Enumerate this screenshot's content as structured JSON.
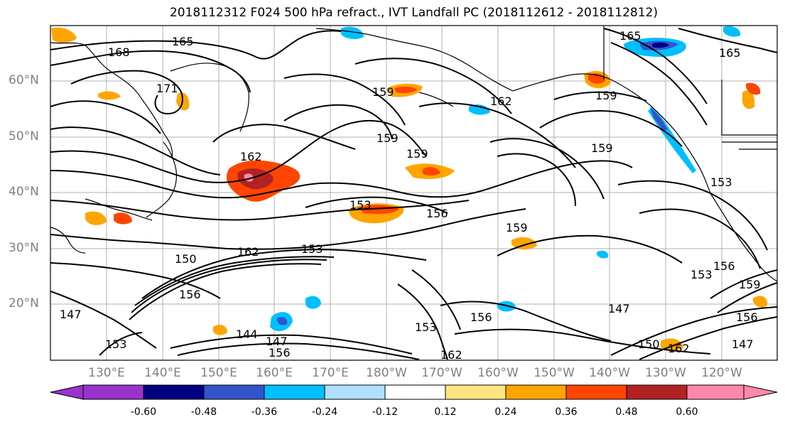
{
  "title": "2018112312 F024 500 hPa refract., IVT Landfall PC (2018112612 - 2018112812)",
  "lat_labels": [
    "60°N",
    "50°N",
    "40°N",
    "30°N",
    "20°N"
  ],
  "lon_labels": [
    "130°E",
    "140°E",
    "150°E",
    "160°E",
    "170°E",
    "180°W",
    "170°W",
    "160°W",
    "150°W",
    "140°W",
    "130°W",
    "120°W"
  ],
  "colorbar": {
    "ticks": [
      "-0.60",
      "-0.48",
      "-0.36",
      "-0.24",
      "-0.12",
      "0.12",
      "0.24",
      "0.36",
      "0.48",
      "0.60"
    ],
    "colors": [
      "#9933cc",
      "#000080",
      "#3355cc",
      "#00bfff",
      "#b0e0ff",
      "#ffffff",
      "#ffe680",
      "#ffa500",
      "#ff4500",
      "#b22222",
      "#ff88aa"
    ]
  },
  "contour_labels": [
    "165",
    "168",
    "165",
    "165",
    "171",
    "159",
    "162",
    "159",
    "159",
    "159",
    "162",
    "153",
    "156",
    "159",
    "153",
    "162",
    "153",
    "150",
    "156",
    "144",
    "147",
    "156",
    "153",
    "162",
    "147",
    "150",
    "153",
    "156",
    "159",
    "147",
    "162",
    "156",
    "147",
    "153",
    "159",
    "156"
  ],
  "colors": {
    "grid": "#b0b0b0",
    "contour": "#000000",
    "axis_label": "#808080"
  }
}
